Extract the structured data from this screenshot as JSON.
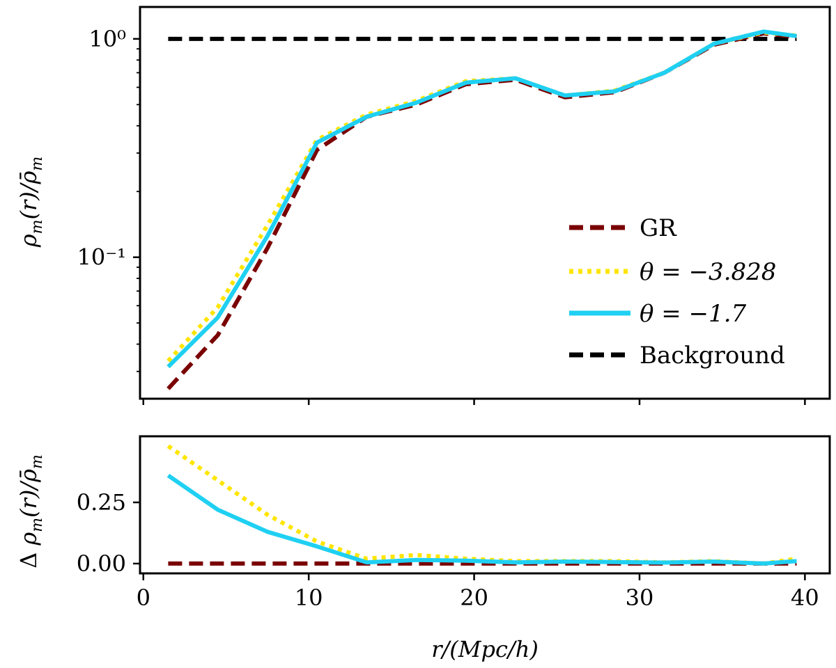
{
  "chart_data": [
    {
      "type": "line",
      "panel": "top",
      "yscale": "log",
      "ylabel": "ρ_m(r)/ρ̄_m",
      "xlabel": "",
      "xlim": [
        -0.2,
        41.5
      ],
      "ylim": [
        0.0225,
        1.4
      ],
      "x_ticks": [
        0,
        10,
        20,
        30,
        40
      ],
      "y_ticks": [
        {
          "value": 0.1,
          "label": "10⁻¹"
        },
        {
          "value": 1.0,
          "label": "10⁰"
        }
      ],
      "legend_position": "lower-right",
      "x": [
        1.5,
        4.5,
        7.5,
        10.5,
        13.5,
        16.5,
        19.5,
        22.5,
        25.5,
        28.5,
        31.5,
        34.5,
        37.5,
        39.5
      ],
      "series": [
        {
          "name": "GR",
          "color": "#7a0000",
          "style": "dashed",
          "values": [
            0.025,
            0.044,
            0.11,
            0.31,
            0.44,
            0.5,
            0.62,
            0.65,
            0.54,
            0.57,
            0.7,
            0.94,
            1.06,
            1.02
          ]
        },
        {
          "name": "θ = −3.828",
          "color": "#ffe500",
          "style": "dotted",
          "values": [
            0.0335,
            0.059,
            0.14,
            0.345,
            0.45,
            0.52,
            0.64,
            0.66,
            0.55,
            0.58,
            0.7,
            0.95,
            1.07,
            1.035
          ]
        },
        {
          "name": "θ = −1.7",
          "color": "#1fd0f2",
          "style": "solid",
          "values": [
            0.0315,
            0.053,
            0.125,
            0.335,
            0.44,
            0.51,
            0.63,
            0.66,
            0.55,
            0.575,
            0.7,
            0.95,
            1.08,
            1.03
          ]
        },
        {
          "name": "Background",
          "color": "#000000",
          "style": "dashed",
          "values": [
            1.0,
            1.0,
            1.0,
            1.0,
            1.0,
            1.0,
            1.0,
            1.0,
            1.0,
            1.0,
            1.0,
            1.0,
            1.0,
            1.0
          ]
        }
      ]
    },
    {
      "type": "line",
      "panel": "bottom",
      "yscale": "linear",
      "ylabel": "Δ ρ_m(r)/ρ̄_m",
      "xlabel": "r/(Mpc/h)",
      "xlim": [
        -0.2,
        41.5
      ],
      "ylim": [
        -0.04,
        0.52
      ],
      "x_ticks": [
        {
          "value": 0,
          "label": "0"
        },
        {
          "value": 10,
          "label": "10"
        },
        {
          "value": 20,
          "label": "20"
        },
        {
          "value": 30,
          "label": "30"
        },
        {
          "value": 40,
          "label": "40"
        }
      ],
      "y_ticks": [
        {
          "value": 0.0,
          "label": "0.00"
        },
        {
          "value": 0.25,
          "label": "0.25"
        }
      ],
      "x": [
        1.5,
        4.5,
        7.5,
        10.5,
        13.5,
        16.5,
        19.5,
        22.5,
        25.5,
        28.5,
        31.5,
        34.5,
        37.5,
        39.5
      ],
      "series": [
        {
          "name": "GR",
          "color": "#7a0000",
          "style": "dashed",
          "values": [
            0.0,
            0.0,
            0.0,
            0.0,
            0.0,
            0.0,
            0.0,
            0.0,
            0.0,
            0.0,
            0.0,
            0.0,
            0.0,
            0.0
          ]
        },
        {
          "name": "θ = −3.828",
          "color": "#ffe500",
          "style": "dotted",
          "values": [
            0.48,
            0.34,
            0.2,
            0.09,
            0.02,
            0.035,
            0.02,
            0.01,
            0.01,
            0.01,
            0.005,
            0.01,
            0.0,
            0.02
          ]
        },
        {
          "name": "θ = −1.7",
          "color": "#1fd0f2",
          "style": "solid",
          "values": [
            0.36,
            0.22,
            0.13,
            0.07,
            0.005,
            0.015,
            0.012,
            0.005,
            0.008,
            0.006,
            0.004,
            0.008,
            0.0,
            0.01
          ]
        }
      ]
    }
  ]
}
